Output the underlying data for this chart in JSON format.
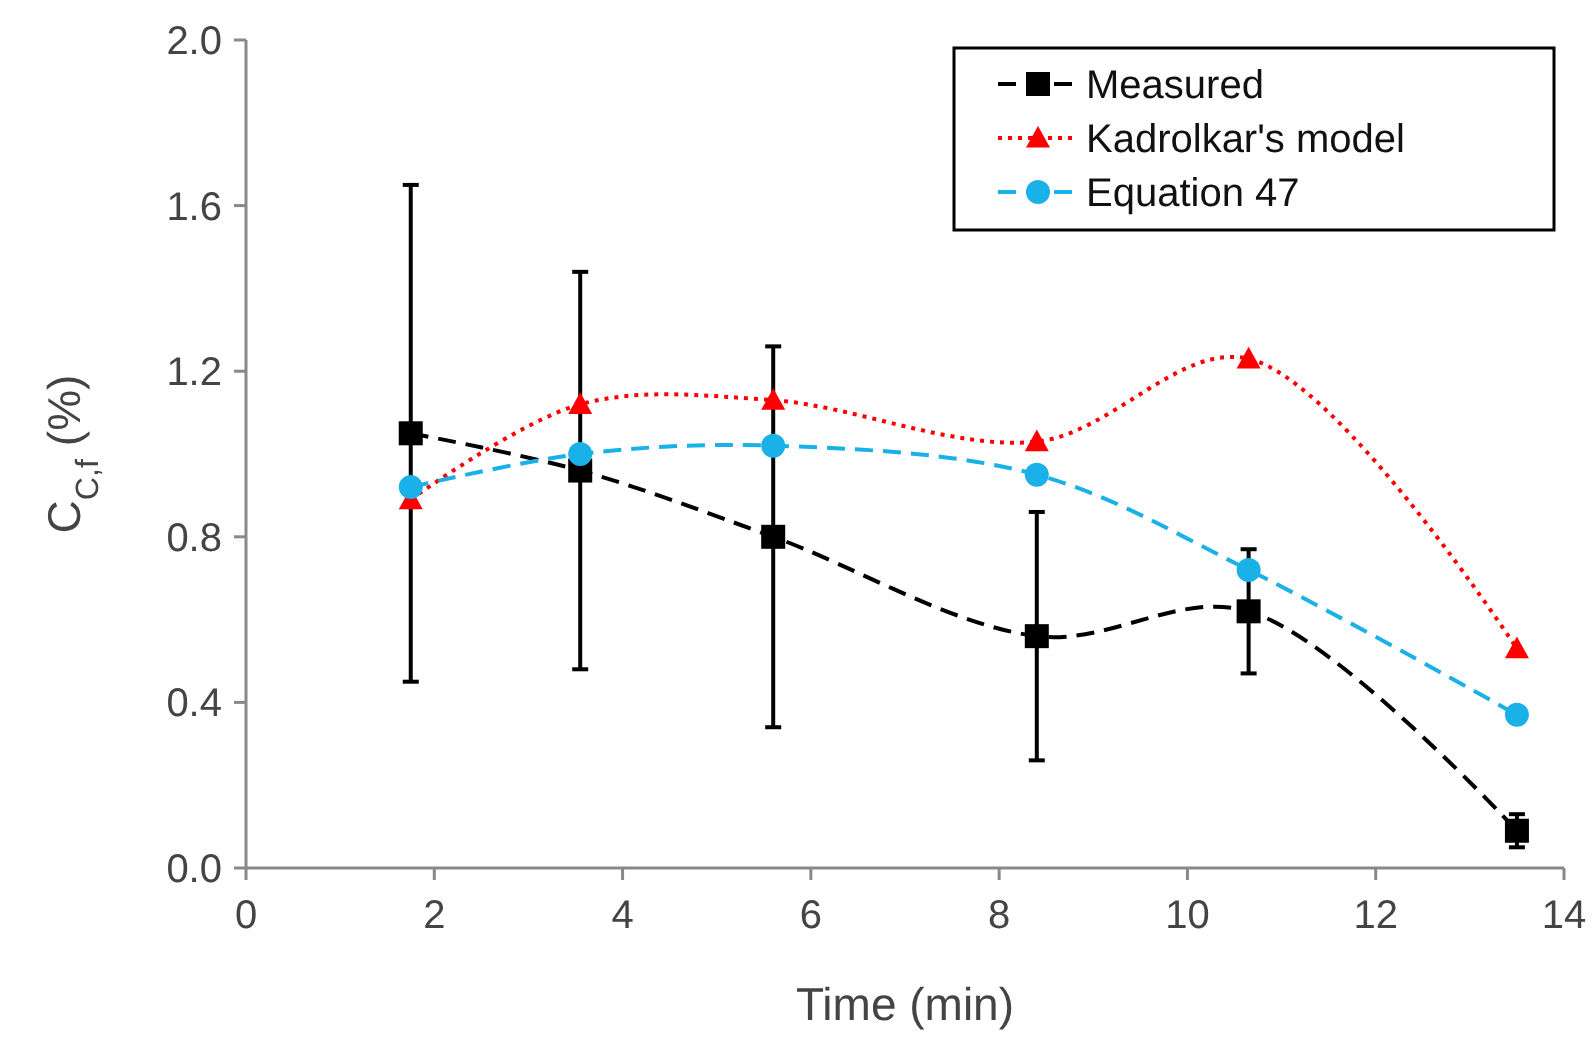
{
  "chart_data": {
    "type": "line",
    "xlabel": "Time (min)",
    "ylabel": "C$_{C,f}$ (%)",
    "xlim": [
      0,
      14
    ],
    "xticks": [
      0,
      2,
      4,
      6,
      8,
      10,
      12,
      14
    ],
    "ylim": [
      0,
      2
    ],
    "yticks": [
      {
        "value": 0,
        "label": "0.0"
      },
      {
        "value": 0.4,
        "label": "0.4"
      },
      {
        "value": 0.8,
        "label": "0.8"
      },
      {
        "value": 1.2,
        "label": "1.2"
      },
      {
        "value": 1.6,
        "label": "1.6"
      },
      {
        "value": 2,
        "label": "2.0"
      }
    ],
    "x": [
      1.75,
      3.55,
      5.6,
      8.4,
      10.65,
      13.5
    ],
    "grid": false,
    "legend": "top right",
    "series": [
      {
        "name": "Measured",
        "color": "#000000",
        "marker": "square",
        "line_style": "dashed",
        "values": [
          1.05,
          0.96,
          0.8,
          0.56,
          0.62,
          0.09
        ],
        "errors": [
          0.6,
          0.48,
          0.46,
          0.3,
          0.15,
          0.04
        ]
      },
      {
        "name": "Kadrolkar's model",
        "color": "#ff0000",
        "marker": "triangle",
        "line_style": "dotted",
        "values": [
          0.89,
          1.12,
          1.13,
          1.03,
          1.23,
          0.53
        ]
      },
      {
        "name": "Equation 47",
        "color": "#1ab0e8",
        "marker": "circle",
        "line_style": "dashed",
        "values": [
          0.92,
          1.0,
          1.02,
          0.95,
          0.72,
          0.37
        ]
      }
    ]
  }
}
